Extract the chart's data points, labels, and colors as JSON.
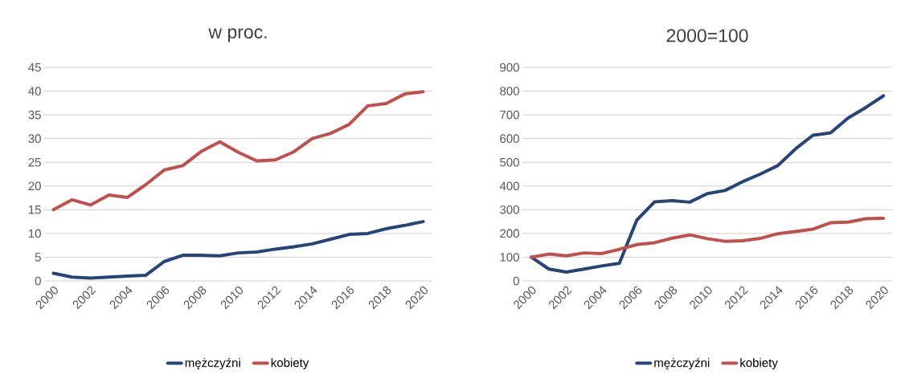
{
  "chart_data": [
    {
      "type": "line",
      "title": "w proc.",
      "x": [
        2000,
        2001,
        2002,
        2003,
        2004,
        2005,
        2006,
        2007,
        2008,
        2009,
        2010,
        2011,
        2012,
        2013,
        2014,
        2015,
        2016,
        2017,
        2018,
        2019,
        2020
      ],
      "xlim": [
        1999.5,
        2020.5
      ],
      "xticks": [
        2000,
        2002,
        2004,
        2006,
        2008,
        2010,
        2012,
        2014,
        2016,
        2018,
        2020
      ],
      "ylim": [
        0,
        45
      ],
      "yticks": [
        0,
        5,
        10,
        15,
        20,
        25,
        30,
        35,
        40,
        45
      ],
      "grid": "y",
      "legend": "bottom",
      "line_style": "solid",
      "marker": "none",
      "series": [
        {
          "name": "mężczyźni",
          "color": "#264478",
          "values": [
            1.6,
            0.8,
            0.6,
            0.8,
            1.0,
            1.2,
            4.1,
            5.4,
            5.4,
            5.3,
            5.9,
            6.1,
            6.7,
            7.2,
            7.8,
            8.8,
            9.8,
            10.0,
            11.0,
            11.7,
            12.5
          ]
        },
        {
          "name": "kobiety",
          "color": "#c0504d",
          "values": [
            15.0,
            17.1,
            16.0,
            18.1,
            17.6,
            20.3,
            23.4,
            24.3,
            27.3,
            29.3,
            27.1,
            25.3,
            25.5,
            27.2,
            30.0,
            31.1,
            33.0,
            36.9,
            37.4,
            39.4,
            39.9
          ]
        }
      ]
    },
    {
      "type": "line",
      "title": "2000=100",
      "x": [
        2000,
        2001,
        2002,
        2003,
        2004,
        2005,
        2006,
        2007,
        2008,
        2009,
        2010,
        2011,
        2012,
        2013,
        2014,
        2015,
        2016,
        2017,
        2018,
        2019,
        2020
      ],
      "xlim": [
        1999.5,
        2020.5
      ],
      "xticks": [
        2000,
        2002,
        2004,
        2006,
        2008,
        2010,
        2012,
        2014,
        2016,
        2018,
        2020
      ],
      "ylim": [
        0,
        900
      ],
      "yticks": [
        0,
        100,
        200,
        300,
        400,
        500,
        600,
        700,
        800,
        900
      ],
      "grid": "y",
      "legend": "bottom",
      "line_style": "solid",
      "marker": "none",
      "series": [
        {
          "name": "mężczyźni",
          "color": "#264478",
          "values": [
            100,
            50,
            37,
            50,
            63,
            74,
            257,
            333,
            338,
            332,
            368,
            381,
            418,
            450,
            486,
            556,
            614,
            624,
            687,
            731,
            780
          ]
        },
        {
          "name": "kobiety",
          "color": "#c0504d",
          "values": [
            100,
            113,
            106,
            118,
            115,
            133,
            153,
            161,
            180,
            194,
            178,
            167,
            169,
            179,
            199,
            208,
            218,
            245,
            248,
            262,
            264
          ]
        }
      ]
    }
  ]
}
